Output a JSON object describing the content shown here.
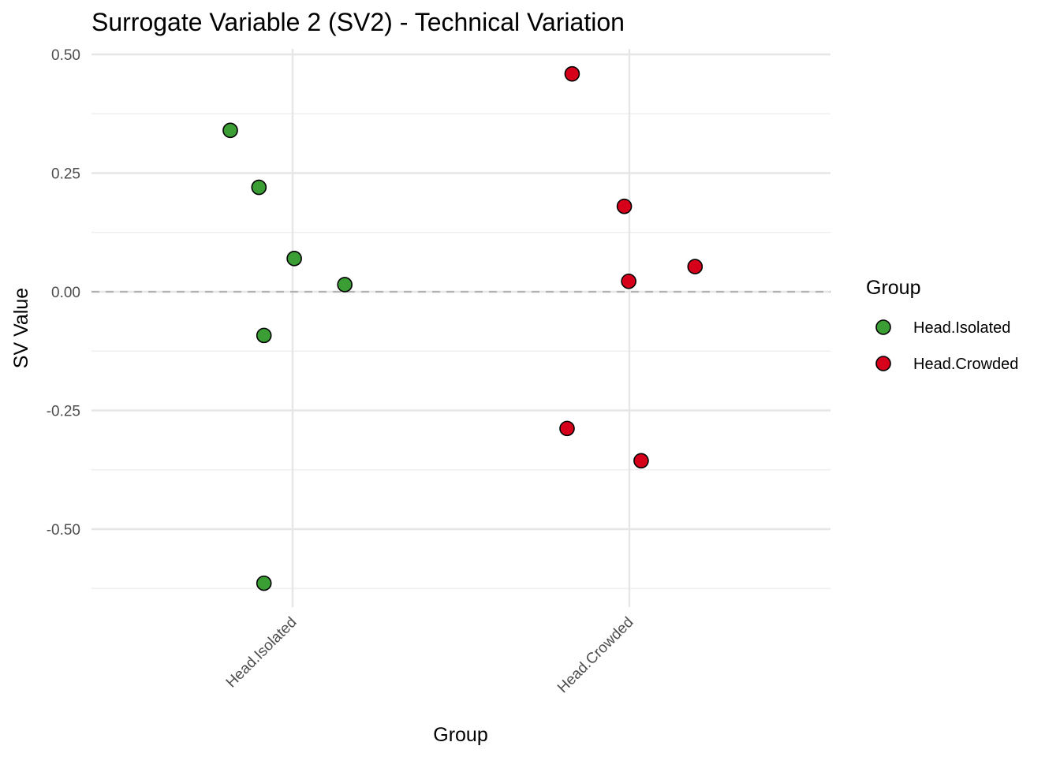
{
  "chart_data": {
    "type": "scatter",
    "title": "Surrogate Variable 2 (SV2) - Technical Variation",
    "xlabel": "Group",
    "ylabel": "SV Value",
    "categories": [
      "Head.Isolated",
      "Head.Crowded"
    ],
    "ylim": [
      -0.625,
      0.505
    ],
    "yticks": [
      {
        "value": 0.5,
        "label": "0.50"
      },
      {
        "value": 0.25,
        "label": "0.25"
      },
      {
        "value": 0.0,
        "label": "0.00"
      },
      {
        "value": -0.25,
        "label": "-0.25"
      },
      {
        "value": -0.5,
        "label": "-0.50"
      }
    ],
    "yminor": [
      0.375,
      0.125,
      -0.125,
      -0.375,
      -0.625
    ],
    "reference_line": {
      "value": 0.0,
      "style": "dashed"
    },
    "grid": true,
    "legend": {
      "title": "Group",
      "position": "right"
    },
    "series": [
      {
        "name": "Head.Isolated",
        "color": "#3A9E35",
        "points": [
          {
            "x": 0.815,
            "y": 0.34
          },
          {
            "x": 0.9,
            "y": 0.22
          },
          {
            "x": 1.005,
            "y": 0.07
          },
          {
            "x": 1.155,
            "y": 0.015
          },
          {
            "x": 0.915,
            "y": -0.092
          },
          {
            "x": 0.915,
            "y": -0.614
          }
        ]
      },
      {
        "name": "Head.Crowded",
        "color": "#D7001B",
        "points": [
          {
            "x": 1.83,
            "y": 0.459
          },
          {
            "x": 1.985,
            "y": 0.18
          },
          {
            "x": 2.195,
            "y": 0.053
          },
          {
            "x": 1.998,
            "y": 0.022
          },
          {
            "x": 1.815,
            "y": -0.288
          },
          {
            "x": 2.035,
            "y": -0.356
          }
        ]
      }
    ]
  }
}
